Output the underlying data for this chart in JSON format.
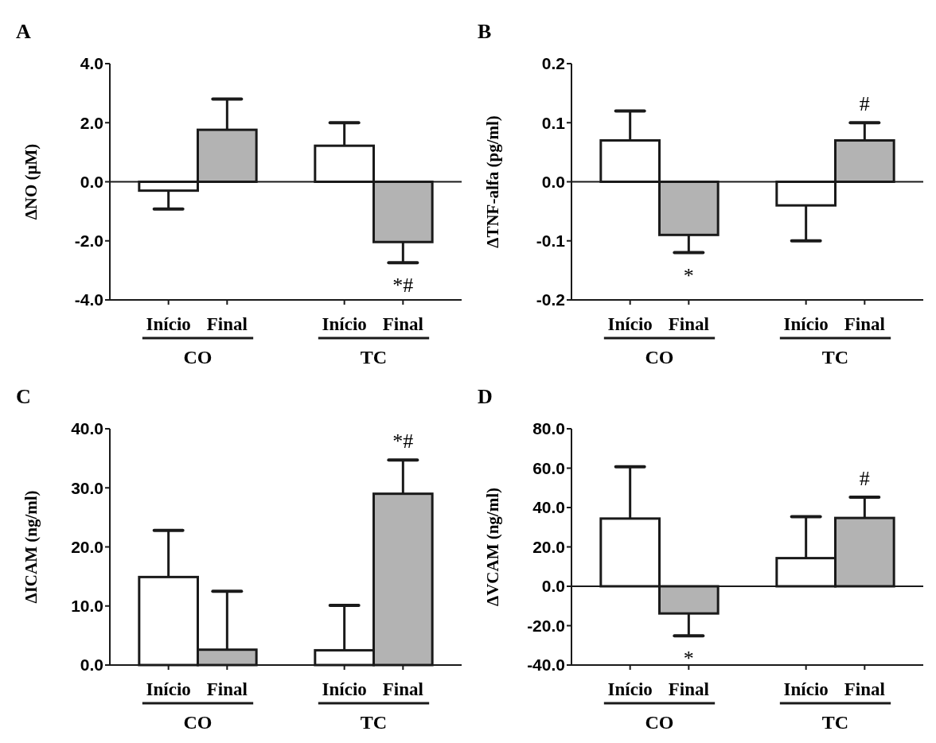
{
  "chart_data": [
    {
      "type": "bar",
      "title": "A",
      "ylabel": "ΔNO (μM)",
      "categories": [
        "Início",
        "Final",
        null,
        "Início",
        "Final"
      ],
      "values": [
        -0.3,
        1.76,
        null,
        1.22,
        -2.04
      ],
      "colors": [
        "#ffffff",
        "#b3b3b3",
        null,
        "#ffffff",
        "#b3b3b3"
      ],
      "errors": [
        [
          -0.92,
          -0.3
        ],
        [
          1.76,
          2.8
        ],
        null,
        [
          1.22,
          2.0
        ],
        [
          -2.74,
          -2.04
        ]
      ],
      "value_labels": [
        null,
        null,
        null,
        null,
        "*#"
      ],
      "ylim": [
        -4,
        4
      ],
      "yticks": [
        {
          "value": -4,
          "label": "-4.0"
        },
        {
          "value": -2,
          "label": "-2.0"
        },
        {
          "value": 0,
          "label": "0.0"
        },
        {
          "value": 2,
          "label": "2.0"
        },
        {
          "value": 4,
          "label": "4.0"
        }
      ],
      "annotations": [
        "CO",
        "TC"
      ]
    },
    {
      "type": "bar",
      "title": "B",
      "ylabel": "ΔTNF-alfa (pg/ml)",
      "categories": [
        "Início",
        "Final",
        null,
        "Início",
        "Final"
      ],
      "values": [
        0.07,
        -0.09,
        null,
        -0.04,
        0.07
      ],
      "colors": [
        "#ffffff",
        "#b3b3b3",
        null,
        "#ffffff",
        "#b3b3b3"
      ],
      "errors": [
        [
          0.07,
          0.12
        ],
        [
          -0.12,
          -0.09
        ],
        null,
        [
          -0.1,
          -0.04
        ],
        [
          0.07,
          0.1
        ]
      ],
      "value_labels": [
        null,
        "*",
        null,
        null,
        "#"
      ],
      "ylim": [
        -0.2,
        0.2
      ],
      "yticks": [
        -0.2,
        -0.1,
        {
          "value": 0,
          "label": "0.0"
        },
        0.1,
        0.2
      ],
      "annotations": [
        "CO",
        "TC"
      ]
    },
    {
      "type": "bar",
      "title": "C",
      "ylabel": "ΔICAM (ng/ml)",
      "categories": [
        "Início",
        "Final",
        null,
        "Início",
        "Final"
      ],
      "values": [
        14.9,
        2.6,
        null,
        2.5,
        29.0
      ],
      "colors": [
        "#ffffff",
        "#b3b3b3",
        null,
        "#ffffff",
        "#b3b3b3"
      ],
      "errors": [
        [
          14.9,
          22.8
        ],
        [
          2.6,
          12.5
        ],
        null,
        [
          2.5,
          10.1
        ],
        [
          29.0,
          34.7
        ]
      ],
      "value_labels": [
        null,
        null,
        null,
        null,
        "*#"
      ],
      "ylim": [
        0,
        40
      ],
      "yticks": [
        {
          "value": 0,
          "label": "0.0"
        },
        {
          "value": 10,
          "label": "10.0"
        },
        {
          "value": 20,
          "label": "20.0"
        },
        {
          "value": 30,
          "label": "30.0"
        },
        {
          "value": 40,
          "label": "40.0"
        }
      ],
      "annotations": [
        "CO",
        "TC"
      ]
    },
    {
      "type": "bar",
      "title": "D",
      "ylabel": "ΔVCAM (ng/ml)",
      "categories": [
        "Início",
        "Final",
        null,
        "Início",
        "Final"
      ],
      "values": [
        34.4,
        -13.8,
        null,
        14.3,
        34.7
      ],
      "colors": [
        "#ffffff",
        "#b3b3b3",
        null,
        "#ffffff",
        "#b3b3b3"
      ],
      "errors": [
        [
          34.4,
          60.7
        ],
        [
          -25.2,
          -13.8
        ],
        null,
        [
          14.3,
          35.4
        ],
        [
          34.7,
          45.3
        ]
      ],
      "value_labels": [
        null,
        "*",
        null,
        null,
        "#"
      ],
      "ylim": [
        -40,
        80
      ],
      "yticks": [
        {
          "value": -40,
          "label": "-40.0"
        },
        {
          "value": -20,
          "label": "-20.0"
        },
        {
          "value": 0,
          "label": "0.0"
        },
        {
          "value": 20,
          "label": "20.0"
        },
        {
          "value": 40,
          "label": "40.0"
        },
        {
          "value": 60,
          "label": "60.0"
        },
        {
          "value": 80,
          "label": "80.0"
        }
      ],
      "annotations": [
        "CO",
        "TC"
      ]
    }
  ]
}
